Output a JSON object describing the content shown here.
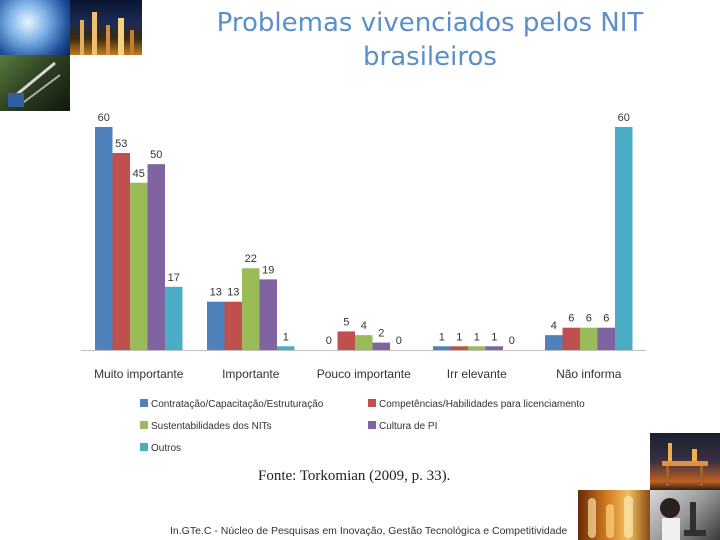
{
  "slide": {
    "title_line1": "Problemas vivenciados pelos NIT",
    "title_line2": "brasileiros",
    "source": "Fonte: Torkomian (2009, p. 33).",
    "footer": "In.GTe.C - Núcleo de Pesquisas em Inovação, Gestão Tecnológica e Competitividade"
  },
  "colors": {
    "title": "#5b8fc7",
    "series": [
      "#4f81bd",
      "#c0504d",
      "#9bbb59",
      "#8064a2",
      "#4bacc6"
    ]
  },
  "chart_data": {
    "type": "bar",
    "title": "",
    "xlabel": "",
    "ylabel": "",
    "ylim": [
      0,
      60
    ],
    "categories": [
      "Muito importante",
      "Importante",
      "Pouco importante",
      "Irr elevante",
      "Não informa"
    ],
    "series": [
      {
        "name": "Contratação/Capacitação/Estruturação",
        "values": [
          60,
          13,
          0,
          1,
          4
        ]
      },
      {
        "name": "Competências/Habilidades para licenciamento",
        "values": [
          53,
          13,
          5,
          1,
          6
        ]
      },
      {
        "name": "Sustentabilidades dos NITs",
        "values": [
          45,
          22,
          4,
          1,
          6
        ]
      },
      {
        "name": "Cultura de PI",
        "values": [
          50,
          19,
          2,
          1,
          6
        ]
      },
      {
        "name": "Outros",
        "values": [
          17,
          1,
          0,
          0,
          60
        ]
      }
    ],
    "legend_position": "bottom",
    "grid": false
  }
}
